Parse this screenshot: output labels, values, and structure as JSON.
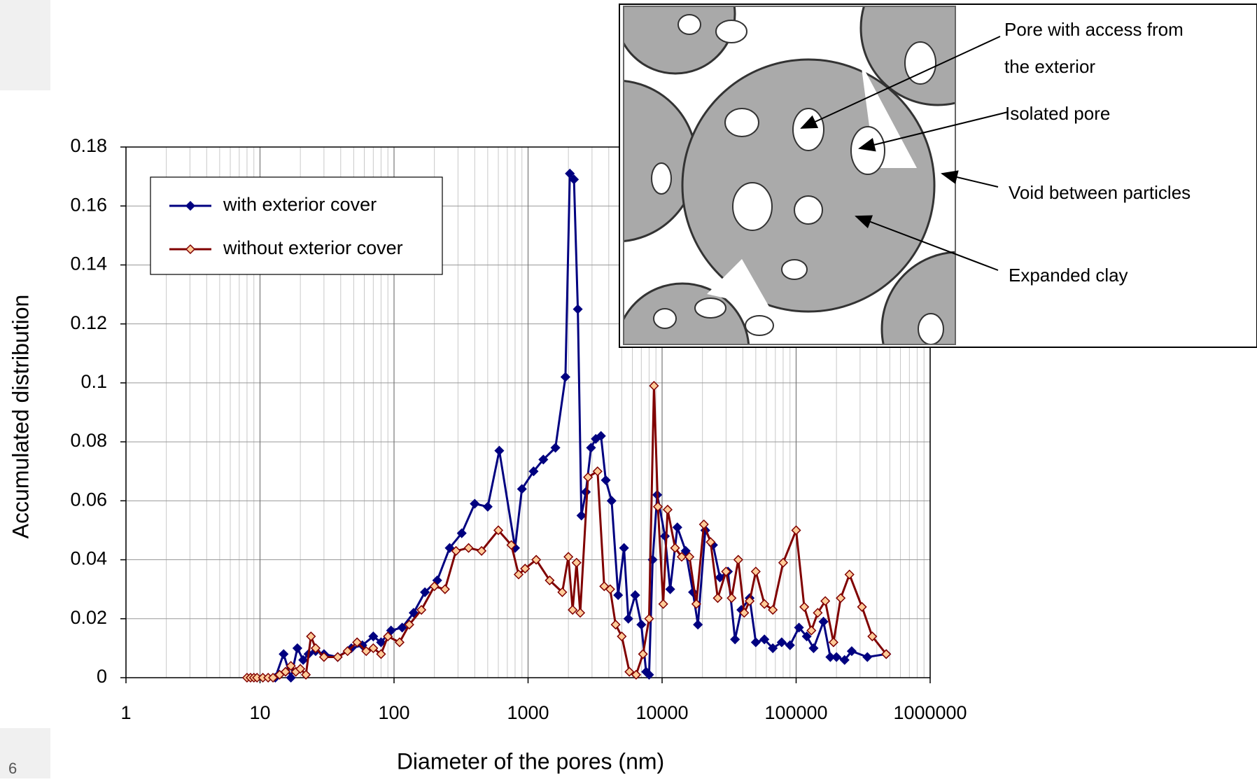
{
  "page_number": "6",
  "chart_data": {
    "type": "line",
    "xlabel": "Diameter of the pores (nm)",
    "ylabel": "Accumulated distribution",
    "xscale": "log",
    "xlim": [
      1,
      1000000
    ],
    "xticks": [
      1,
      10,
      100,
      1000,
      10000,
      100000,
      1000000
    ],
    "ylim": [
      0,
      0.18
    ],
    "yticks": [
      0,
      0.02,
      0.04,
      0.06,
      0.08,
      0.1,
      0.12,
      0.14,
      0.16,
      0.18
    ],
    "grid": true,
    "minor_grid": true,
    "legend": "upper left",
    "series": [
      {
        "name": "with exterior cover",
        "color": "#000080",
        "marker_facecolor": "#000080",
        "x": [
          13,
          15,
          17,
          19,
          21,
          23,
          26,
          30,
          38,
          48,
          58,
          70,
          80,
          95,
          115,
          140,
          170,
          210,
          260,
          320,
          400,
          500,
          610,
          800,
          900,
          1100,
          1300,
          1600,
          1900,
          2050,
          2200,
          2350,
          2500,
          2700,
          2950,
          3200,
          3500,
          3800,
          4200,
          4700,
          5200,
          5600,
          6300,
          7000,
          7600,
          8000,
          8500,
          9200,
          10500,
          11500,
          13000,
          15000,
          17000,
          18500,
          21000,
          24000,
          27000,
          31000,
          35000,
          39000,
          45000,
          50000,
          58000,
          67000,
          78000,
          90000,
          105000,
          120000,
          135000,
          160000,
          180000,
          200000,
          230000,
          260000,
          340000,
          470000
        ],
        "values": [
          0,
          0.008,
          0,
          0.01,
          0.006,
          0.008,
          0.009,
          0.008,
          0.007,
          0.01,
          0.011,
          0.014,
          0.012,
          0.016,
          0.017,
          0.022,
          0.029,
          0.033,
          0.044,
          0.049,
          0.059,
          0.058,
          0.077,
          0.044,
          0.064,
          0.07,
          0.074,
          0.078,
          0.102,
          0.171,
          0.169,
          0.125,
          0.055,
          0.063,
          0.078,
          0.081,
          0.082,
          0.067,
          0.06,
          0.028,
          0.044,
          0.02,
          0.028,
          0.018,
          0.002,
          0.001,
          0.04,
          0.062,
          0.048,
          0.03,
          0.051,
          0.043,
          0.029,
          0.018,
          0.05,
          0.045,
          0.034,
          0.036,
          0.013,
          0.023,
          0.027,
          0.012,
          0.013,
          0.01,
          0.012,
          0.011,
          0.017,
          0.014,
          0.01,
          0.019,
          0.007,
          0.007,
          0.006,
          0.009,
          0.007,
          0.008
        ]
      },
      {
        "name": "without exterior cover",
        "color": "#800000",
        "marker_facecolor": "#ffcc99",
        "x": [
          8,
          8.5,
          9,
          9.5,
          10.5,
          11.5,
          12.5,
          14,
          15.5,
          17,
          18.5,
          20,
          22,
          24,
          26,
          30,
          38,
          45,
          53,
          62,
          70,
          80,
          90,
          110,
          130,
          160,
          200,
          240,
          290,
          360,
          450,
          600,
          750,
          850,
          950,
          1150,
          1450,
          1800,
          2000,
          2150,
          2300,
          2450,
          2800,
          3300,
          3700,
          4100,
          4500,
          5000,
          5700,
          6400,
          7200,
          8000,
          8700,
          9300,
          10200,
          11000,
          12500,
          14000,
          16000,
          18000,
          20500,
          23000,
          26000,
          30000,
          33000,
          37000,
          41000,
          45000,
          50000,
          58000,
          67000,
          80000,
          100000,
          115000,
          130000,
          145000,
          165000,
          190000,
          215000,
          250000,
          310000,
          370000,
          470000
        ],
        "values": [
          0,
          0,
          0,
          0,
          0,
          0,
          0,
          0.001,
          0.002,
          0.004,
          0.002,
          0.003,
          0.001,
          0.014,
          0.01,
          0.007,
          0.007,
          0.009,
          0.012,
          0.009,
          0.01,
          0.008,
          0.014,
          0.012,
          0.018,
          0.023,
          0.031,
          0.03,
          0.043,
          0.044,
          0.043,
          0.05,
          0.045,
          0.035,
          0.037,
          0.04,
          0.033,
          0.029,
          0.041,
          0.023,
          0.039,
          0.022,
          0.068,
          0.07,
          0.031,
          0.03,
          0.018,
          0.014,
          0.002,
          0.001,
          0.008,
          0.02,
          0.099,
          0.058,
          0.025,
          0.057,
          0.044,
          0.041,
          0.041,
          0.025,
          0.052,
          0.046,
          0.027,
          0.036,
          0.027,
          0.04,
          0.022,
          0.026,
          0.036,
          0.025,
          0.023,
          0.039,
          0.05,
          0.024,
          0.016,
          0.022,
          0.026,
          0.012,
          0.027,
          0.035,
          0.024,
          0.014,
          0.008
        ]
      }
    ]
  },
  "diagram": {
    "labels": [
      {
        "lines": [
          "Pore with access from",
          "the exterior"
        ]
      },
      {
        "lines": [
          "Isolated pore"
        ]
      },
      {
        "lines": [
          "Void between particles"
        ]
      },
      {
        "lines": [
          "Expanded clay"
        ]
      }
    ]
  }
}
